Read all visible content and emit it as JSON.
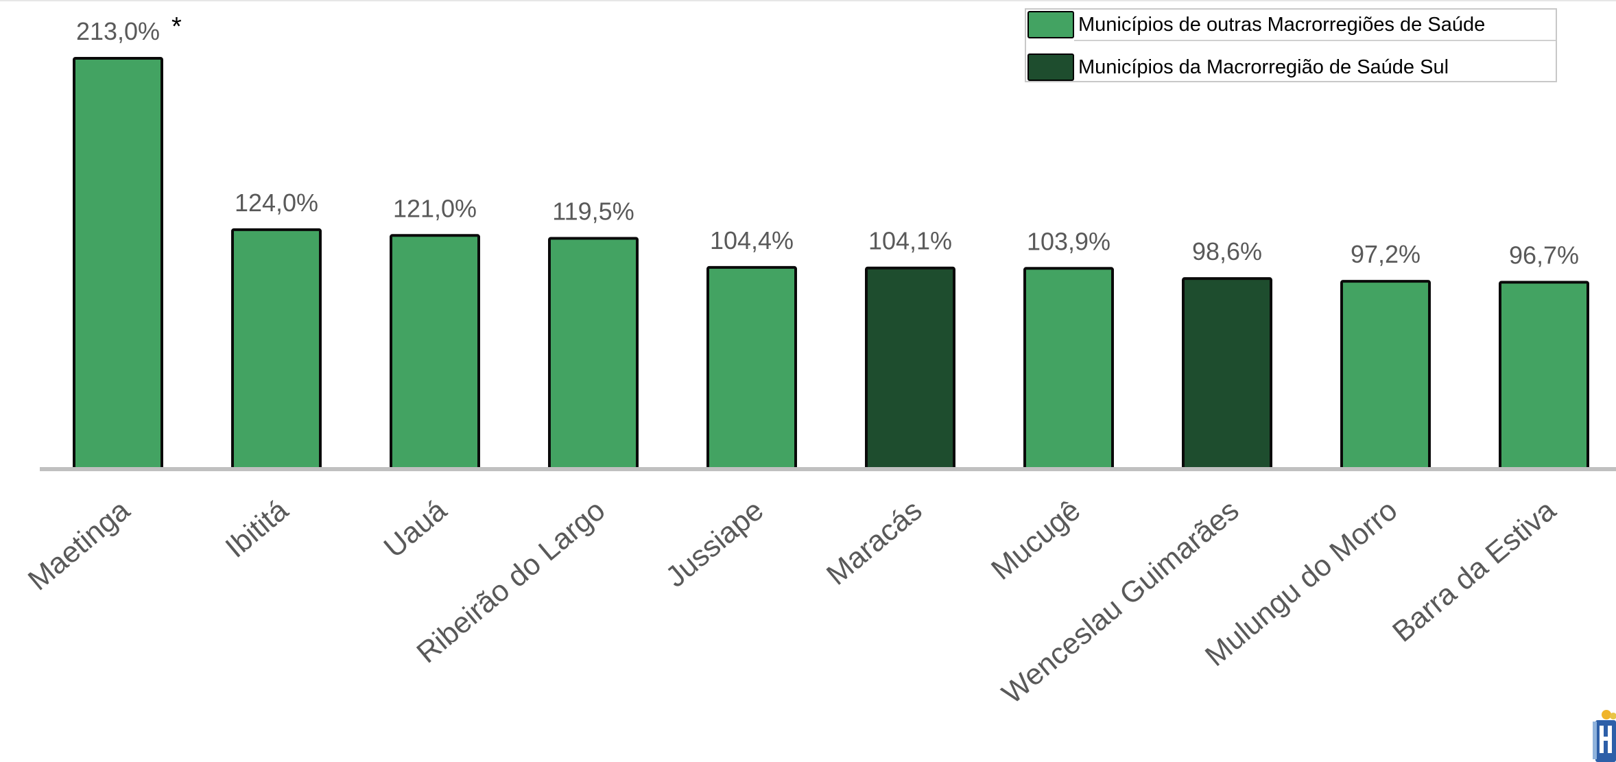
{
  "chart_data": {
    "type": "bar",
    "categories": [
      "Maetinga",
      "Ibititá",
      "Uauá",
      "Ribeirão do Largo",
      "Jussiape",
      "Maracás",
      "Mucugê",
      "Wenceslau Guimarães",
      "Mulungu do Morro",
      "Barra da Estiva"
    ],
    "values": [
      213.0,
      124.0,
      121.0,
      119.5,
      104.4,
      104.1,
      103.9,
      98.6,
      97.2,
      96.7
    ],
    "value_labels": [
      "213,0%",
      "124,0%",
      "121,0%",
      "119,5%",
      "104,4%",
      "104,1%",
      "103,9%",
      "98,6%",
      "97,2%",
      "96,7%"
    ],
    "groups": [
      "outras",
      "outras",
      "outras",
      "outras",
      "outras",
      "sul",
      "outras",
      "sul",
      "outras",
      "outras"
    ],
    "annotations": [
      {
        "category": "Maetinga",
        "text": "*"
      }
    ],
    "unit": "%",
    "ylim": [
      0,
      213.0
    ],
    "grid": false,
    "legend_position": "top-right",
    "legend": [
      {
        "key": "outras",
        "label": "Municípios de outras Macrorregiões de Saúde",
        "color": "#43a362"
      },
      {
        "key": "sul",
        "label": "Municípios da Macrorregião de Saúde Sul",
        "color": "#1e4d2e"
      }
    ]
  },
  "colors": {
    "outras": "#43a362",
    "sul": "#1e4d2e",
    "bar_outline": "#0a0a0a",
    "axis": "#c0c0c0",
    "value_text": "#595959",
    "category_text": "#595959"
  }
}
